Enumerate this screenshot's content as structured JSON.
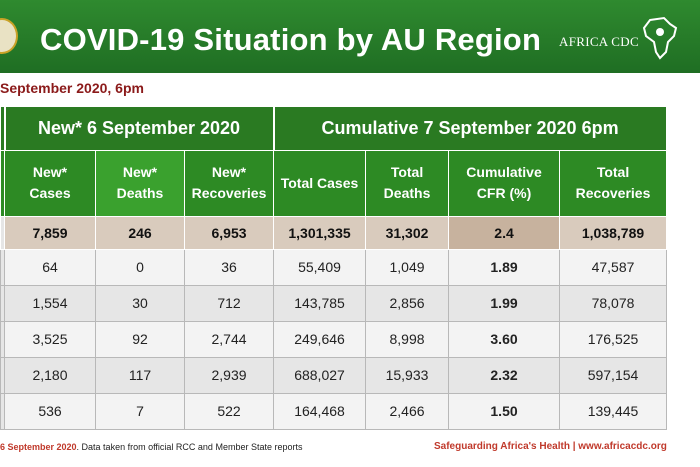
{
  "header": {
    "title": "COVID-19 Situation by AU Region",
    "brand_text": "AFRICA CDC",
    "logo_icon": "africa-map-icon",
    "accent_color": "#2e7d32"
  },
  "subtitle": "September 2020, 6pm",
  "table": {
    "group_headers": {
      "new": "New* 6 September 2020",
      "cumulative": "Cumulative 7 September 2020 6pm"
    },
    "columns": {
      "new_cases": [
        "New*",
        "Cases"
      ],
      "new_deaths": [
        "New*",
        "Deaths"
      ],
      "new_recoveries": [
        "New*",
        "Recoveries"
      ],
      "total_cases": "Total Cases",
      "total_deaths": [
        "Total",
        "Deaths"
      ],
      "cfr": [
        "Cumulative",
        "CFR (%)"
      ],
      "total_recoveries": [
        "Total",
        "Recoveries"
      ]
    },
    "total_row": {
      "new_cases": "7,859",
      "new_deaths": "246",
      "new_recoveries": "6,953",
      "total_cases": "1,301,335",
      "total_deaths": "31,302",
      "cfr": "2.4",
      "total_recoveries": "1,038,789"
    },
    "rows": [
      {
        "new_cases": "64",
        "new_deaths": "0",
        "new_recoveries": "36",
        "total_cases": "55,409",
        "total_deaths": "1,049",
        "cfr": "1.89",
        "total_recoveries": "47,587"
      },
      {
        "new_cases": "1,554",
        "new_deaths": "30",
        "new_recoveries": "712",
        "total_cases": "143,785",
        "total_deaths": "2,856",
        "cfr": "1.99",
        "total_recoveries": "78,078"
      },
      {
        "new_cases": "3,525",
        "new_deaths": "92",
        "new_recoveries": "2,744",
        "total_cases": "249,646",
        "total_deaths": "8,998",
        "cfr": "3.60",
        "total_recoveries": "176,525"
      },
      {
        "new_cases": "2,180",
        "new_deaths": "117",
        "new_recoveries": "2,939",
        "total_cases": "688,027",
        "total_deaths": "15,933",
        "cfr": "2.32",
        "total_recoveries": "597,154"
      },
      {
        "new_cases": "536",
        "new_deaths": "7",
        "new_recoveries": "522",
        "total_cases": "164,468",
        "total_deaths": "2,466",
        "cfr": "1.50",
        "total_recoveries": "139,445"
      }
    ]
  },
  "footer": {
    "date_text": "6 September 2020",
    "note": ". Data taken from official RCC and Member State reports",
    "tagline": "Safeguarding Africa's Health | www.africacdc.org"
  }
}
